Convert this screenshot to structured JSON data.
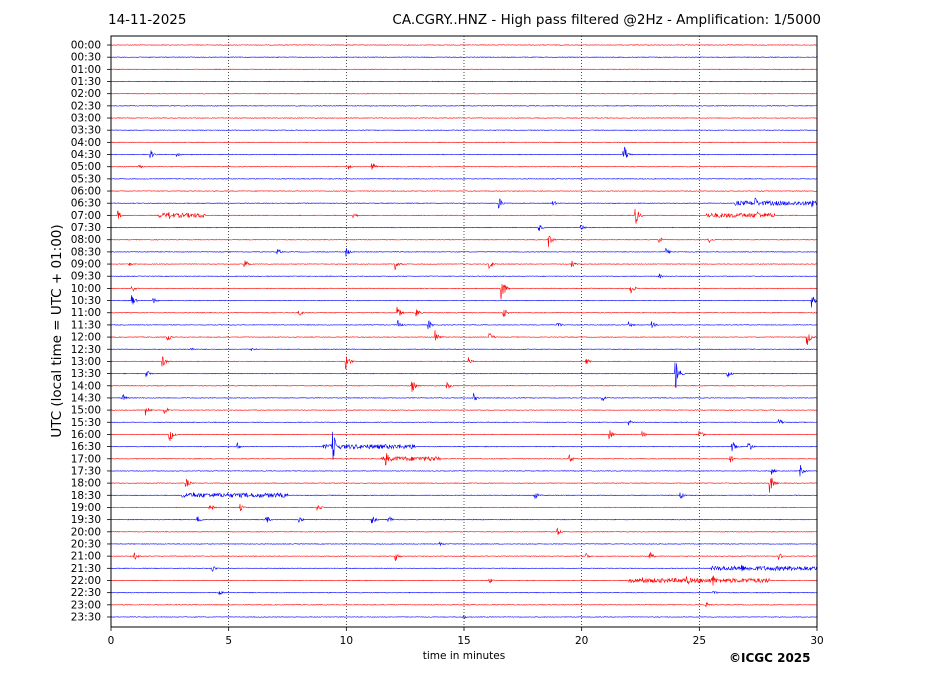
{
  "header": {
    "date": "14-11-2025",
    "title": "CA.CGRY..HNZ - High pass filtered @2Hz - Amplification: 1/5000"
  },
  "footer": {
    "copyright": "©ICGC 2025"
  },
  "colors": {
    "trace_a": "#ff0000",
    "trace_b": "#0000ff",
    "gridline": "#000000"
  },
  "chart_data": {
    "type": "line",
    "xlabel": "time in minutes",
    "ylabel": "UTC (local time = UTC + 01:00)",
    "xlim": [
      0,
      30
    ],
    "xticks": [
      0,
      5,
      10,
      15,
      20,
      25,
      30
    ],
    "grid": "vertical dotted lines at every 5 minutes",
    "trace_colors": "alternating red and blue per row",
    "rows": [
      "00:00",
      "00:30",
      "01:00",
      "01:30",
      "02:00",
      "02:30",
      "03:00",
      "03:30",
      "04:00",
      "04:30",
      "05:00",
      "05:30",
      "06:00",
      "06:30",
      "07:00",
      "07:30",
      "08:00",
      "08:30",
      "09:00",
      "09:30",
      "10:00",
      "10:30",
      "11:00",
      "11:30",
      "12:00",
      "12:30",
      "13:00",
      "13:30",
      "14:00",
      "14:30",
      "15:00",
      "15:30",
      "16:00",
      "16:30",
      "17:00",
      "17:30",
      "18:00",
      "18:30",
      "19:00",
      "19:30",
      "20:00",
      "20:30",
      "21:00",
      "21:30",
      "22:00",
      "22:30",
      "23:00",
      "23:30"
    ],
    "events": [
      {
        "row": "04:30",
        "t": 1.7,
        "amp": 0.35
      },
      {
        "row": "04:30",
        "t": 2.8,
        "amp": 0.25
      },
      {
        "row": "04:30",
        "t": 21.8,
        "amp": 0.9
      },
      {
        "row": "05:00",
        "t": 1.2,
        "amp": 0.2
      },
      {
        "row": "05:00",
        "t": 10.1,
        "amp": 0.25
      },
      {
        "row": "05:00",
        "t": 11.1,
        "amp": 0.45
      },
      {
        "row": "06:30",
        "t": 16.5,
        "amp": 0.5
      },
      {
        "row": "06:30",
        "t": 18.8,
        "amp": 0.25
      },
      {
        "row": "06:30",
        "t": 27.4,
        "amp": 0.5
      },
      {
        "row": "06:30",
        "t": 29.8,
        "amp": 0.7
      },
      {
        "row": "07:00",
        "t": 0.3,
        "amp": 0.4
      },
      {
        "row": "07:00",
        "t": 2.5,
        "amp": 0.35
      },
      {
        "row": "07:00",
        "t": 10.3,
        "amp": 0.35
      },
      {
        "row": "07:00",
        "t": 22.3,
        "amp": 0.8
      },
      {
        "row": "07:00",
        "t": 27.5,
        "amp": 0.4
      },
      {
        "row": "07:30",
        "t": 18.2,
        "amp": 0.3
      },
      {
        "row": "07:30",
        "t": 20.0,
        "amp": 0.3
      },
      {
        "row": "08:00",
        "t": 18.6,
        "amp": 0.7
      },
      {
        "row": "08:00",
        "t": 23.3,
        "amp": 0.3
      },
      {
        "row": "08:00",
        "t": 25.4,
        "amp": 0.3
      },
      {
        "row": "08:30",
        "t": 7.1,
        "amp": 0.25
      },
      {
        "row": "08:30",
        "t": 10.0,
        "amp": 0.4
      },
      {
        "row": "08:30",
        "t": 23.6,
        "amp": 0.3
      },
      {
        "row": "09:00",
        "t": 0.8,
        "amp": 0.2
      },
      {
        "row": "09:00",
        "t": 5.7,
        "amp": 0.4
      },
      {
        "row": "09:00",
        "t": 12.1,
        "amp": 0.5
      },
      {
        "row": "09:00",
        "t": 16.1,
        "amp": 0.45
      },
      {
        "row": "09:00",
        "t": 19.6,
        "amp": 0.3
      },
      {
        "row": "09:30",
        "t": 23.3,
        "amp": 0.25
      },
      {
        "row": "10:00",
        "t": 16.6,
        "amp": 1.2
      },
      {
        "row": "10:00",
        "t": 22.1,
        "amp": 0.5
      },
      {
        "row": "10:00",
        "t": 0.9,
        "amp": 0.4
      },
      {
        "row": "10:30",
        "t": 0.9,
        "amp": 0.5
      },
      {
        "row": "10:30",
        "t": 1.8,
        "amp": 0.3
      },
      {
        "row": "10:30",
        "t": 29.8,
        "amp": 0.6
      },
      {
        "row": "11:00",
        "t": 8.0,
        "amp": 0.3
      },
      {
        "row": "11:00",
        "t": 12.2,
        "amp": 0.5
      },
      {
        "row": "11:00",
        "t": 13.0,
        "amp": 0.4
      },
      {
        "row": "11:00",
        "t": 16.7,
        "amp": 0.4
      },
      {
        "row": "11:30",
        "t": 12.2,
        "amp": 0.4
      },
      {
        "row": "11:30",
        "t": 13.5,
        "amp": 0.4
      },
      {
        "row": "11:30",
        "t": 19.0,
        "amp": 0.3
      },
      {
        "row": "11:30",
        "t": 22.0,
        "amp": 0.3
      },
      {
        "row": "11:30",
        "t": 23.0,
        "amp": 0.3
      },
      {
        "row": "12:00",
        "t": 2.4,
        "amp": 0.4
      },
      {
        "row": "12:00",
        "t": 13.8,
        "amp": 0.6
      },
      {
        "row": "12:00",
        "t": 16.1,
        "amp": 0.4
      },
      {
        "row": "12:00",
        "t": 29.6,
        "amp": 0.7
      },
      {
        "row": "12:30",
        "t": 6.0,
        "amp": 0.25
      },
      {
        "row": "12:30",
        "t": 3.4,
        "amp": 0.2
      },
      {
        "row": "13:00",
        "t": 2.2,
        "amp": 0.5
      },
      {
        "row": "13:00",
        "t": 10.0,
        "amp": 0.7
      },
      {
        "row": "13:00",
        "t": 15.2,
        "amp": 0.35
      },
      {
        "row": "13:00",
        "t": 20.2,
        "amp": 0.3
      },
      {
        "row": "13:30",
        "t": 1.5,
        "amp": 0.4
      },
      {
        "row": "13:30",
        "t": 24.0,
        "amp": 1.3
      },
      {
        "row": "13:30",
        "t": 26.2,
        "amp": 0.4
      },
      {
        "row": "14:00",
        "t": 12.8,
        "amp": 0.55
      },
      {
        "row": "14:00",
        "t": 14.3,
        "amp": 0.3
      },
      {
        "row": "14:30",
        "t": 0.5,
        "amp": 0.35
      },
      {
        "row": "14:30",
        "t": 15.4,
        "amp": 0.4
      },
      {
        "row": "14:30",
        "t": 20.9,
        "amp": 0.3
      },
      {
        "row": "15:00",
        "t": 1.5,
        "amp": 0.45
      },
      {
        "row": "15:00",
        "t": 2.3,
        "amp": 0.35
      },
      {
        "row": "15:30",
        "t": 22.0,
        "amp": 0.25
      },
      {
        "row": "15:30",
        "t": 28.4,
        "amp": 0.35
      },
      {
        "row": "16:00",
        "t": 2.5,
        "amp": 0.7
      },
      {
        "row": "16:00",
        "t": 21.2,
        "amp": 0.4
      },
      {
        "row": "16:00",
        "t": 22.6,
        "amp": 0.3
      },
      {
        "row": "16:00",
        "t": 25.0,
        "amp": 0.5
      },
      {
        "row": "16:30",
        "t": 9.4,
        "amp": 1.8
      },
      {
        "row": "16:30",
        "t": 26.4,
        "amp": 0.5
      },
      {
        "row": "16:30",
        "t": 27.1,
        "amp": 0.5
      },
      {
        "row": "16:30",
        "t": 5.4,
        "amp": 0.3
      },
      {
        "row": "17:00",
        "t": 11.7,
        "amp": 0.6
      },
      {
        "row": "17:00",
        "t": 19.5,
        "amp": 0.4
      },
      {
        "row": "17:00",
        "t": 26.3,
        "amp": 0.4
      },
      {
        "row": "17:30",
        "t": 29.3,
        "amp": 0.5
      },
      {
        "row": "17:30",
        "t": 28.1,
        "amp": 0.3
      },
      {
        "row": "18:00",
        "t": 3.2,
        "amp": 0.45
      },
      {
        "row": "18:00",
        "t": 28.0,
        "amp": 0.9
      },
      {
        "row": "18:30",
        "t": 18.0,
        "amp": 0.4
      },
      {
        "row": "18:30",
        "t": 24.2,
        "amp": 0.35
      },
      {
        "row": "18:30",
        "t": 3.5,
        "amp": 0.3
      },
      {
        "row": "19:00",
        "t": 4.2,
        "amp": 0.5
      },
      {
        "row": "19:00",
        "t": 5.5,
        "amp": 0.3
      },
      {
        "row": "19:00",
        "t": 8.8,
        "amp": 0.3
      },
      {
        "row": "19:30",
        "t": 3.7,
        "amp": 0.35
      },
      {
        "row": "19:30",
        "t": 6.6,
        "amp": 0.4
      },
      {
        "row": "19:30",
        "t": 8.0,
        "amp": 0.3
      },
      {
        "row": "19:30",
        "t": 11.1,
        "amp": 0.4
      },
      {
        "row": "19:30",
        "t": 11.8,
        "amp": 0.4
      },
      {
        "row": "20:00",
        "t": 19.0,
        "amp": 0.3
      },
      {
        "row": "20:30",
        "t": 14.0,
        "amp": 0.2
      },
      {
        "row": "21:00",
        "t": 1.0,
        "amp": 0.35
      },
      {
        "row": "21:00",
        "t": 12.1,
        "amp": 0.4
      },
      {
        "row": "21:00",
        "t": 20.2,
        "amp": 0.3
      },
      {
        "row": "21:00",
        "t": 22.9,
        "amp": 0.4
      },
      {
        "row": "21:00",
        "t": 28.4,
        "amp": 0.3
      },
      {
        "row": "21:30",
        "t": 4.3,
        "amp": 0.35
      },
      {
        "row": "21:30",
        "t": 26.8,
        "amp": 0.4
      },
      {
        "row": "21:30",
        "t": 29.2,
        "amp": 0.3
      },
      {
        "row": "22:00",
        "t": 22.6,
        "amp": 0.45
      },
      {
        "row": "22:00",
        "t": 24.5,
        "amp": 0.4
      },
      {
        "row": "22:00",
        "t": 25.6,
        "amp": 0.5
      },
      {
        "row": "22:00",
        "t": 16.1,
        "amp": 0.25
      },
      {
        "row": "22:30",
        "t": 4.6,
        "amp": 0.25
      },
      {
        "row": "22:30",
        "t": 25.6,
        "amp": 0.25
      },
      {
        "row": "23:00",
        "t": 25.3,
        "amp": 0.25
      },
      {
        "row": "23:30",
        "t": 15.0,
        "amp": 0.15
      }
    ],
    "busy_segments": [
      {
        "row": "07:00",
        "t0": 2.0,
        "t1": 4.0
      },
      {
        "row": "07:00",
        "t0": 25.3,
        "t1": 28.2
      },
      {
        "row": "06:30",
        "t0": 26.5,
        "t1": 29.9
      },
      {
        "row": "16:30",
        "t0": 9.0,
        "t1": 13.0
      },
      {
        "row": "18:30",
        "t0": 3.0,
        "t1": 7.5
      },
      {
        "row": "21:30",
        "t0": 25.5,
        "t1": 30.0
      },
      {
        "row": "22:00",
        "t0": 22.0,
        "t1": 28.0
      },
      {
        "row": "17:00",
        "t0": 11.5,
        "t1": 14.0
      }
    ]
  }
}
